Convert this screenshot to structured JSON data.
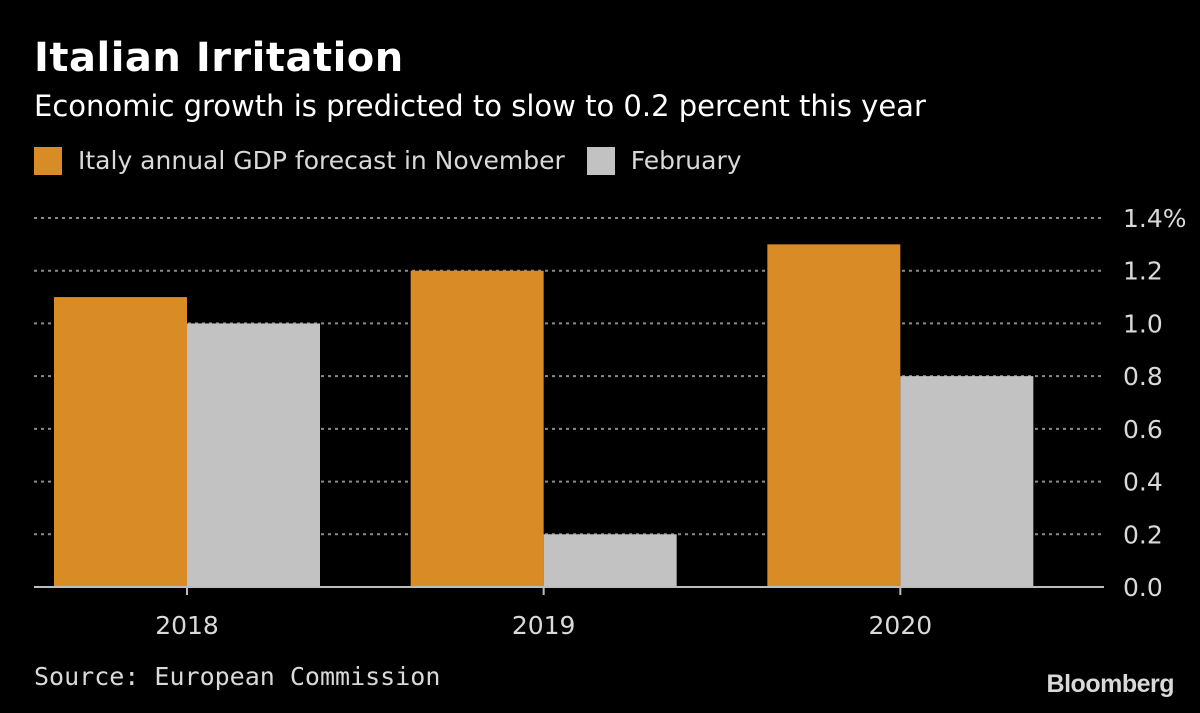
{
  "title": "Italian Irritation",
  "subtitle": "Economic growth is predicted to slow to 0.2 percent this year",
  "legend": {
    "series_a": "Italy annual GDP forecast in November",
    "series_b": "February"
  },
  "source": "Source: European Commission",
  "brand": "Bloomberg",
  "colors": {
    "november": "#d98b26",
    "february": "#c2c2c2",
    "grid": "#8a8a8a"
  },
  "chart_data": {
    "type": "bar",
    "title": "Italian Irritation",
    "subtitle": "Economic growth is predicted to slow to 0.2 percent this year",
    "categories": [
      "2018",
      "2019",
      "2020"
    ],
    "series": [
      {
        "name": "Italy annual GDP forecast in November",
        "values": [
          1.1,
          1.2,
          1.3
        ]
      },
      {
        "name": "February",
        "values": [
          1.0,
          0.2,
          0.8
        ]
      }
    ],
    "ylim": [
      0,
      1.4
    ],
    "yticks": [
      "0.0",
      "0.2",
      "0.4",
      "0.6",
      "0.8",
      "1.0",
      "1.2",
      "1.4%"
    ],
    "xlabel": "",
    "ylabel": "",
    "grid": true,
    "legend_position": "top-left",
    "y_axis_side": "right"
  }
}
